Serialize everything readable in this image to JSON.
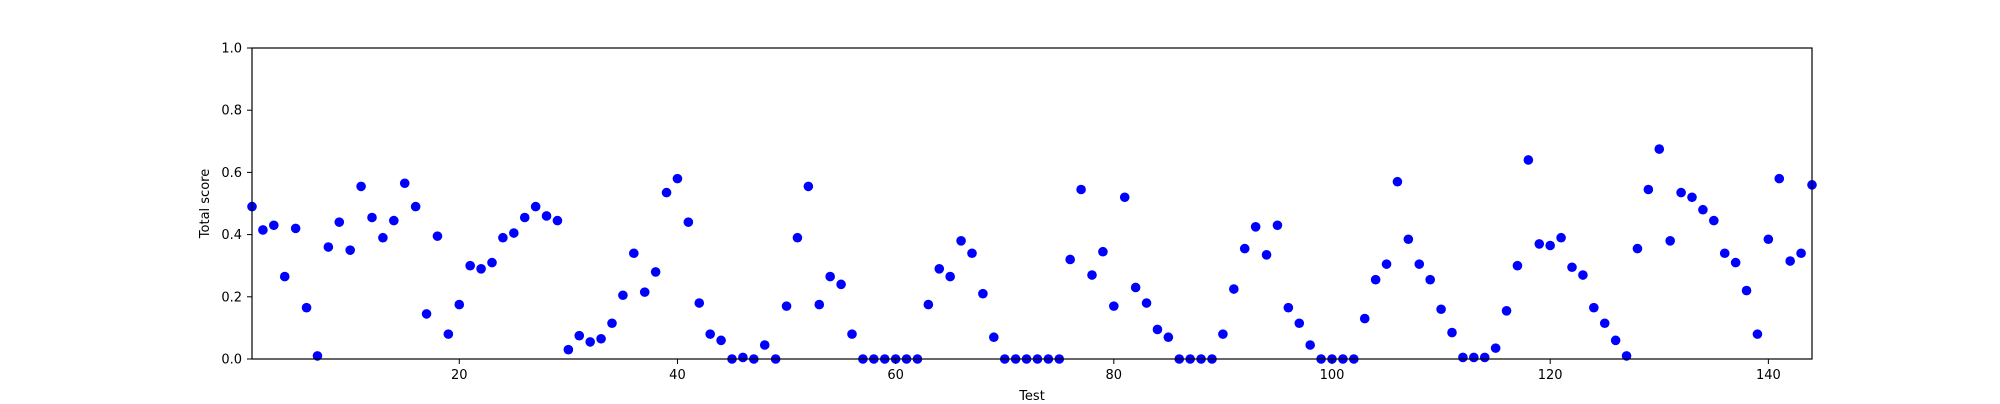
{
  "chart_data": {
    "type": "scatter",
    "title": "",
    "xlabel": "Test",
    "ylabel": "Total score",
    "xlim": [
      1,
      144
    ],
    "ylim": [
      0.0,
      1.0
    ],
    "grid": false,
    "marker_color": "#0000ff",
    "x_ticks": [
      "20",
      "40",
      "60",
      "80",
      "100",
      "120",
      "140"
    ],
    "x_tick_values": [
      20,
      40,
      60,
      80,
      100,
      120,
      140
    ],
    "y_ticks": [
      "0.0",
      "0.2",
      "0.4",
      "0.6",
      "0.8",
      "1.0"
    ],
    "y_tick_values": [
      0.0,
      0.2,
      0.4,
      0.6,
      0.8,
      1.0
    ],
    "series": [
      {
        "x": [
          1,
          2,
          3,
          4,
          5,
          6,
          7,
          8,
          9,
          10,
          11,
          12,
          13,
          14,
          15,
          16,
          17,
          18,
          19,
          20,
          21,
          22,
          23,
          24,
          25,
          26,
          27,
          28,
          29,
          30,
          31,
          32,
          33,
          34,
          35,
          36,
          37,
          38,
          39,
          40,
          41,
          42,
          43,
          44,
          45,
          46,
          47,
          48,
          49,
          50,
          51,
          52,
          53,
          54,
          55,
          56,
          57,
          58,
          59,
          60,
          61,
          62,
          63,
          64,
          65,
          66,
          67,
          68,
          69,
          70,
          71,
          72,
          73,
          74,
          75,
          76,
          77,
          78,
          79,
          80,
          81,
          82,
          83,
          84,
          85,
          86,
          87,
          88,
          89,
          90,
          91,
          92,
          93,
          94,
          95,
          96,
          97,
          98,
          99,
          100,
          101,
          102,
          103,
          104,
          105,
          106,
          107,
          108,
          109,
          110,
          111,
          112,
          113,
          114,
          115,
          116,
          117,
          118,
          119,
          120,
          121,
          122,
          123,
          124,
          125,
          126,
          127,
          128,
          129,
          130,
          131,
          132,
          133,
          134,
          135,
          136,
          137,
          138,
          139,
          140,
          141,
          142,
          143,
          144
        ],
        "y": [
          0.49,
          0.415,
          0.43,
          0.265,
          0.42,
          0.165,
          0.01,
          0.36,
          0.44,
          0.35,
          0.555,
          0.455,
          0.39,
          0.445,
          0.565,
          0.49,
          0.145,
          0.395,
          0.08,
          0.175,
          0.3,
          0.29,
          0.31,
          0.39,
          0.405,
          0.455,
          0.49,
          0.46,
          0.445,
          0.03,
          0.075,
          0.055,
          0.065,
          0.115,
          0.205,
          0.34,
          0.215,
          0.28,
          0.535,
          0.58,
          0.44,
          0.18,
          0.08,
          0.06,
          0.0,
          0.005,
          0.0,
          0.045,
          0.0,
          0.17,
          0.39,
          0.555,
          0.175,
          0.265,
          0.24,
          0.08,
          0.0,
          0.0,
          0.0,
          0.0,
          0.0,
          0.0,
          0.175,
          0.29,
          0.265,
          0.38,
          0.34,
          0.21,
          0.07,
          0.0,
          0.0,
          0.0,
          0.0,
          0.0,
          0.0,
          0.32,
          0.545,
          0.27,
          0.345,
          0.17,
          0.52,
          0.23,
          0.18,
          0.095,
          0.07,
          0.0,
          0.0,
          0.0,
          0.0,
          0.08,
          0.225,
          0.355,
          0.425,
          0.335,
          0.43,
          0.165,
          0.115,
          0.045,
          0.0,
          0.0,
          0.0,
          0.0,
          0.13,
          0.255,
          0.305,
          0.57,
          0.385,
          0.305,
          0.255,
          0.16,
          0.085,
          0.005,
          0.005,
          0.005,
          0.035,
          0.155,
          0.3,
          0.64,
          0.37,
          0.365,
          0.39,
          0.295,
          0.27,
          0.165,
          0.115,
          0.06,
          0.01,
          0.355,
          0.545,
          0.675,
          0.38,
          0.535,
          0.52,
          0.48,
          0.445,
          0.34,
          0.31,
          0.22,
          0.08,
          0.385,
          0.58,
          0.315,
          0.34,
          0.56
        ]
      }
    ]
  }
}
